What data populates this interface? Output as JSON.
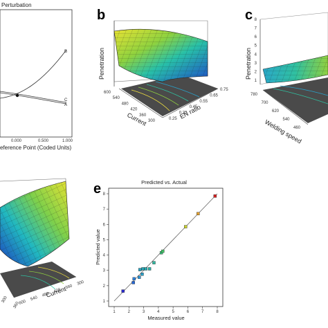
{
  "panels": [
    {
      "id": "a",
      "type": "line",
      "title_fragment": "Perturbation",
      "xlabel_fragment": "eference Point (Coded Units)",
      "x_ticks": [
        "0.000",
        "0.500",
        "1.000"
      ],
      "curve_labels": [
        "B",
        "C",
        "A"
      ]
    },
    {
      "id": "b",
      "type": "surface",
      "label": "b",
      "zlabel": "Penetration",
      "xlabel": "Current",
      "ylabel": "EN ratio",
      "x_ticks": [
        "600",
        "540",
        "480",
        "420",
        "360",
        "300"
      ],
      "y_ticks": [
        "0.25",
        "0.35",
        "0.45",
        "0.55",
        "0.65",
        "0.75"
      ]
    },
    {
      "id": "c",
      "type": "surface",
      "label": "c",
      "zlabel": "Penetration",
      "z_ticks": [
        "8",
        "7",
        "6",
        "5",
        "4",
        "3",
        "2",
        "1"
      ],
      "xlabel": "Welding speed",
      "x_ticks": [
        "780",
        "700",
        "620",
        "540",
        "460"
      ]
    },
    {
      "id": "d",
      "type": "surface",
      "xlabel": "Current",
      "x_ticks": [
        "600",
        "540",
        "480",
        "420",
        "360",
        "300"
      ],
      "y_ticks": [
        "300",
        "360"
      ]
    }
  ],
  "chart_data": {
    "type": "scatter",
    "label": "e",
    "title": "Predicted vs. Actual",
    "xlabel": "Measured value",
    "ylabel": "Predicted value",
    "xlim": [
      1,
      8
    ],
    "ylim": [
      1,
      8
    ],
    "x_ticks": [
      "1",
      "2",
      "3",
      "4",
      "5",
      "6",
      "7",
      "8"
    ],
    "y_ticks": [
      "1",
      "2",
      "3",
      "4",
      "5",
      "6",
      "7",
      "8"
    ],
    "reference_line": [
      [
        1,
        1
      ],
      [
        8,
        8
      ]
    ],
    "points": [
      {
        "x": 1.6,
        "y": 1.65,
        "color": "#2b2bd1"
      },
      {
        "x": 2.3,
        "y": 2.2,
        "color": "#2468d8"
      },
      {
        "x": 2.35,
        "y": 2.45,
        "color": "#2a82e0"
      },
      {
        "x": 2.7,
        "y": 2.55,
        "color": "#2c94d6"
      },
      {
        "x": 2.9,
        "y": 2.75,
        "color": "#2aa0c8"
      },
      {
        "x": 2.75,
        "y": 3.05,
        "color": "#2aa3c0"
      },
      {
        "x": 2.95,
        "y": 3.1,
        "color": "#2aa8b8"
      },
      {
        "x": 3.15,
        "y": 3.1,
        "color": "#2aacb0"
      },
      {
        "x": 3.4,
        "y": 3.1,
        "color": "#2ab0a8"
      },
      {
        "x": 3.7,
        "y": 3.5,
        "color": "#30b8a0"
      },
      {
        "x": 4.2,
        "y": 4.15,
        "color": "#3cbf7a"
      },
      {
        "x": 4.3,
        "y": 4.25,
        "color": "#44c466"
      },
      {
        "x": 5.85,
        "y": 5.85,
        "color": "#c8d030"
      },
      {
        "x": 6.7,
        "y": 6.7,
        "color": "#e0a030"
      },
      {
        "x": 7.85,
        "y": 7.85,
        "color": "#d42020"
      }
    ]
  },
  "colors": {
    "surface_low": "#1d3fbf",
    "surface_mid": "#21c0b0",
    "surface_high": "#e7e234",
    "floor": "#4a4a4a",
    "fit_line": "#666666"
  }
}
